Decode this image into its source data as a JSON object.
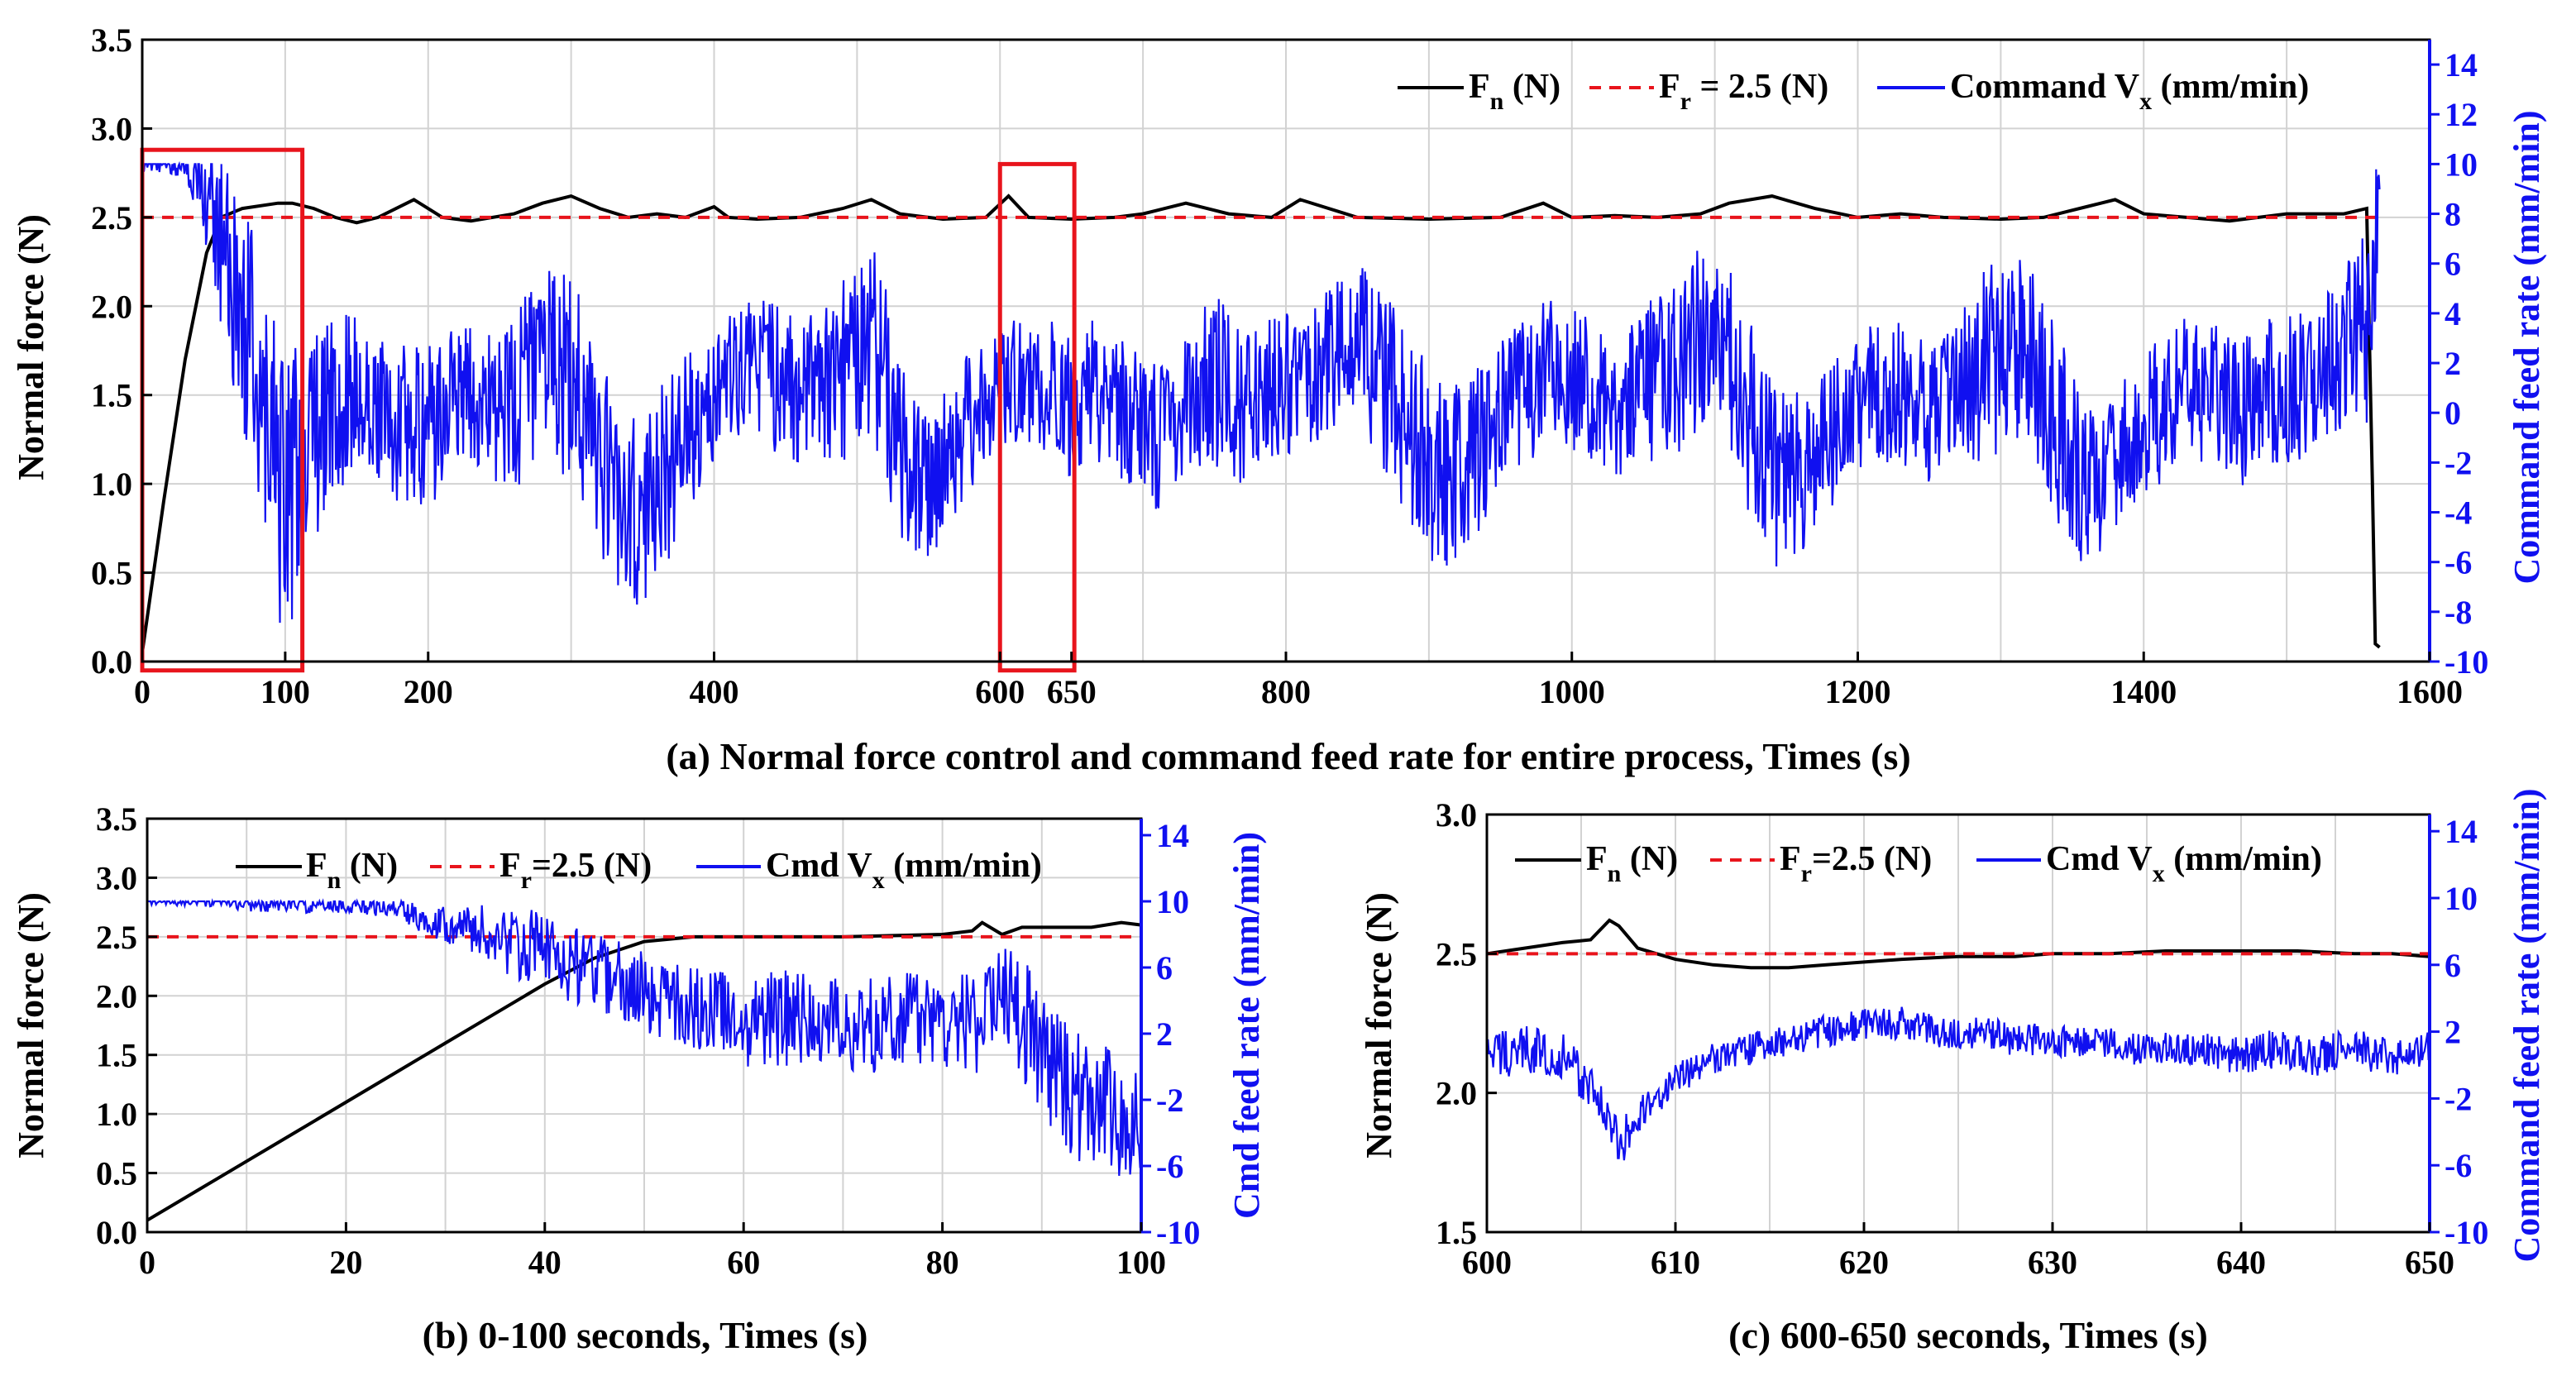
{
  "colors": {
    "force": "#000000",
    "reference": "#e8141c",
    "command": "#1010f0",
    "highlight": "#e8141c",
    "grid": "#d2d2d2"
  },
  "chart_data": [
    {
      "id": "a",
      "type": "line",
      "caption": "(a) Normal force control and command feed rate for entire process, Times (s)",
      "ylabel": "Normal force (N)",
      "y2label": "Command feed rate (mm/min)",
      "xlim": [
        0,
        1600
      ],
      "ylim": [
        0,
        3.5
      ],
      "y2lim": [
        -10,
        15
      ],
      "xticks": [
        "0",
        "100",
        "200",
        "400",
        "600",
        "650",
        "800",
        "1000",
        "1200",
        "1400",
        "1600"
      ],
      "xtick_values": [
        0,
        100,
        200,
        400,
        600,
        650,
        800,
        1000,
        1200,
        1400,
        1600
      ],
      "grid_x": [
        0,
        100,
        200,
        300,
        400,
        500,
        600,
        700,
        800,
        900,
        1000,
        1100,
        1200,
        1300,
        1400,
        1500,
        1600
      ],
      "yticks": [
        "0.0",
        "0.5",
        "1.0",
        "1.5",
        "2.0",
        "2.5",
        "3.0",
        "3.5"
      ],
      "ytick_values": [
        0,
        0.5,
        1.0,
        1.5,
        2.0,
        2.5,
        3.0,
        3.5
      ],
      "y2ticks": [
        "-10",
        "-8",
        "-6",
        "-4",
        "-2",
        "0",
        "2",
        "4",
        "6",
        "8",
        "10",
        "12",
        "14"
      ],
      "y2tick_values": [
        -10,
        -8,
        -6,
        -4,
        -2,
        0,
        2,
        4,
        6,
        8,
        10,
        12,
        14
      ],
      "legend": {
        "force": "F",
        "force_sub": "n",
        "force_unit": " (N)",
        "ref": "F",
        "ref_sub": "r",
        "ref_unit": " = 2.5 (N)",
        "cmd": "Command V",
        "cmd_sub": "x",
        "cmd_unit": " (mm/min)"
      },
      "highlight_boxes": [
        {
          "x": [
            0,
            112
          ],
          "y": [
            -0.05,
            2.88
          ]
        },
        {
          "x": [
            600,
            652
          ],
          "y": [
            -0.05,
            2.8
          ]
        }
      ],
      "series": [
        {
          "name": "Fn (N)",
          "kind": "force",
          "x": [
            0,
            15,
            30,
            45,
            55,
            70,
            95,
            105,
            120,
            135,
            150,
            165,
            190,
            210,
            230,
            260,
            280,
            300,
            320,
            340,
            360,
            380,
            400,
            410,
            430,
            460,
            490,
            510,
            530,
            560,
            590,
            606,
            620,
            650,
            680,
            700,
            730,
            760,
            790,
            810,
            850,
            900,
            950,
            980,
            1000,
            1030,
            1060,
            1090,
            1110,
            1140,
            1170,
            1200,
            1230,
            1260,
            1300,
            1330,
            1360,
            1380,
            1400,
            1430,
            1460,
            1500,
            1540,
            1556,
            1560,
            1562,
            1565
          ],
          "y": [
            0.05,
            0.9,
            1.7,
            2.3,
            2.5,
            2.55,
            2.58,
            2.58,
            2.55,
            2.5,
            2.47,
            2.5,
            2.6,
            2.5,
            2.48,
            2.52,
            2.58,
            2.62,
            2.55,
            2.5,
            2.52,
            2.5,
            2.56,
            2.5,
            2.49,
            2.5,
            2.55,
            2.6,
            2.52,
            2.49,
            2.5,
            2.62,
            2.5,
            2.49,
            2.5,
            2.52,
            2.58,
            2.52,
            2.5,
            2.6,
            2.5,
            2.49,
            2.5,
            2.58,
            2.5,
            2.51,
            2.5,
            2.52,
            2.58,
            2.62,
            2.55,
            2.5,
            2.52,
            2.5,
            2.49,
            2.5,
            2.56,
            2.6,
            2.52,
            2.5,
            2.48,
            2.52,
            2.52,
            2.55,
            1.0,
            0.1,
            0.08
          ]
        },
        {
          "name": "Fr = 2.5 (N)",
          "kind": "reference",
          "x": [
            0,
            1565
          ],
          "y": [
            2.5,
            2.5
          ]
        },
        {
          "name": "Command Vx (mm/min)",
          "kind": "command",
          "axis": "y2",
          "x": [
            0,
            10,
            20,
            30,
            45,
            60,
            80,
            100,
            110,
            130,
            150,
            170,
            190,
            210,
            230,
            250,
            270,
            290,
            300,
            310,
            330,
            350,
            370,
            390,
            410,
            430,
            450,
            470,
            490,
            510,
            530,
            550,
            570,
            590,
            610,
            630,
            650,
            670,
            690,
            710,
            730,
            750,
            770,
            790,
            810,
            830,
            850,
            870,
            890,
            910,
            930,
            950,
            970,
            990,
            1010,
            1030,
            1050,
            1070,
            1090,
            1110,
            1130,
            1150,
            1170,
            1190,
            1210,
            1230,
            1250,
            1270,
            1290,
            1310,
            1330,
            1350,
            1370,
            1390,
            1410,
            1430,
            1450,
            1470,
            1490,
            1510,
            1530,
            1550,
            1560,
            1565
          ],
          "y": [
            10,
            10,
            10,
            10,
            9,
            6,
            2,
            -4,
            -2,
            0,
            1,
            0,
            -1,
            0,
            1,
            0,
            1,
            2,
            1,
            0,
            -3,
            -4,
            -2,
            0,
            1,
            2,
            1,
            1,
            2,
            3,
            -1,
            -3,
            -1,
            0,
            1,
            1,
            0,
            1,
            0,
            -1,
            0,
            1,
            0,
            1,
            1,
            2,
            3,
            1,
            -1,
            -3,
            -2,
            0,
            1,
            2,
            1,
            0,
            1,
            2,
            3,
            2,
            -1,
            -3,
            -2,
            0,
            1,
            1,
            0,
            1,
            2,
            3,
            1,
            -2,
            -3,
            -1,
            0,
            1,
            1,
            0,
            1,
            1,
            2,
            3,
            4,
            10
          ],
          "amplitude": [
            0.4,
            0.4,
            0.4,
            0.6,
            2.5,
            4,
            5,
            6,
            5,
            4,
            3,
            3,
            4,
            3,
            3,
            3,
            4,
            4,
            5,
            4,
            4,
            4,
            4,
            3,
            3,
            3,
            3,
            3,
            4,
            4,
            4,
            3,
            3,
            3,
            3,
            3,
            3,
            3,
            3,
            3,
            3,
            4,
            3,
            3,
            3,
            3,
            3,
            4,
            4,
            4,
            4,
            3,
            3,
            3,
            3,
            3,
            3,
            4,
            4,
            4,
            4,
            4,
            3,
            3,
            3,
            3,
            3,
            3,
            4,
            4,
            4,
            4,
            3,
            3,
            3,
            3,
            3,
            3,
            3,
            3,
            3,
            4,
            4,
            2
          ]
        }
      ]
    },
    {
      "id": "b",
      "type": "line",
      "caption": "(b) 0-100 seconds, Times (s)",
      "ylabel": "Normal force (N)",
      "y2label": "Cmd feed rate (mm/min)",
      "xlim": [
        0,
        100
      ],
      "ylim": [
        0,
        3.5
      ],
      "y2lim": [
        -10,
        15
      ],
      "xticks": [
        "0",
        "20",
        "40",
        "60",
        "80",
        "100"
      ],
      "xtick_values": [
        0,
        20,
        40,
        60,
        80,
        100
      ],
      "grid_x": [
        0,
        10,
        20,
        30,
        40,
        50,
        60,
        70,
        80,
        90,
        100
      ],
      "yticks": [
        "0.0",
        "0.5",
        "1.0",
        "1.5",
        "2.0",
        "2.5",
        "3.0",
        "3.5"
      ],
      "ytick_values": [
        0,
        0.5,
        1.0,
        1.5,
        2.0,
        2.5,
        3.0,
        3.5
      ],
      "y2ticks": [
        "-10",
        "-6",
        "-2",
        "2",
        "6",
        "10",
        "14"
      ],
      "y2tick_values": [
        -10,
        -6,
        -2,
        2,
        6,
        10,
        14
      ],
      "legend": {
        "force": "F",
        "force_sub": "n",
        "force_unit": " (N)",
        "ref": "F",
        "ref_sub": "r",
        "ref_unit": "=2.5 (N)",
        "cmd": "Cmd V",
        "cmd_sub": "x",
        "cmd_unit": " (mm/min)"
      },
      "series": [
        {
          "name": "Fn (N)",
          "kind": "force",
          "x": [
            0,
            5,
            10,
            15,
            20,
            25,
            30,
            35,
            40,
            45,
            50,
            55,
            60,
            65,
            70,
            75,
            80,
            83,
            84,
            86,
            88,
            90,
            95,
            98,
            100
          ],
          "y": [
            0.1,
            0.35,
            0.6,
            0.85,
            1.1,
            1.35,
            1.6,
            1.85,
            2.1,
            2.32,
            2.46,
            2.5,
            2.5,
            2.5,
            2.5,
            2.51,
            2.52,
            2.55,
            2.62,
            2.52,
            2.58,
            2.58,
            2.58,
            2.62,
            2.6
          ]
        },
        {
          "name": "Fr=2.5 (N)",
          "kind": "reference",
          "x": [
            0,
            100
          ],
          "y": [
            2.5,
            2.5
          ]
        },
        {
          "name": "Cmd Vx (mm/min)",
          "kind": "command",
          "axis": "y2",
          "x": [
            0,
            5,
            10,
            15,
            20,
            25,
            28,
            32,
            36,
            40,
            44,
            48,
            52,
            56,
            60,
            64,
            68,
            72,
            76,
            80,
            84,
            86,
            88,
            90,
            92,
            94,
            96,
            98,
            100
          ],
          "y": [
            10,
            10,
            9.8,
            9.8,
            9.8,
            9.6,
            9,
            8.5,
            7.5,
            7,
            6,
            5,
            4,
            3.5,
            3,
            3,
            2.5,
            2.5,
            3,
            3,
            2.5,
            5,
            3,
            0,
            -1,
            -2,
            -2,
            -3,
            -3
          ],
          "amplitude": [
            0.3,
            0.3,
            0.4,
            0.5,
            0.5,
            0.6,
            1,
            1.5,
            2,
            2.5,
            2.5,
            2.5,
            2.5,
            2.5,
            3,
            3,
            3,
            3,
            3,
            3,
            3,
            3,
            4,
            4,
            4,
            4,
            4,
            4,
            4
          ]
        }
      ]
    },
    {
      "id": "c",
      "type": "line",
      "caption": "(c) 600-650 seconds, Times (s)",
      "ylabel": "Normal force (N)",
      "y2label": "Command feed rate (mm/min)",
      "xlim": [
        600,
        650
      ],
      "ylim": [
        1.5,
        3.0
      ],
      "y2lim": [
        -10,
        15
      ],
      "xticks": [
        "600",
        "610",
        "620",
        "630",
        "640",
        "650"
      ],
      "xtick_values": [
        600,
        610,
        620,
        630,
        640,
        650
      ],
      "grid_x": [
        600,
        605,
        610,
        615,
        620,
        625,
        630,
        635,
        640,
        645,
        650
      ],
      "yticks": [
        "1.5",
        "2.0",
        "2.5",
        "3.0"
      ],
      "ytick_values": [
        1.5,
        2.0,
        2.5,
        3.0
      ],
      "y2ticks": [
        "-10",
        "-6",
        "-2",
        "2",
        "6",
        "10",
        "14"
      ],
      "y2tick_values": [
        -10,
        -6,
        -2,
        2,
        6,
        10,
        14
      ],
      "legend": {
        "force": "F",
        "force_sub": "n",
        "force_unit": " (N)",
        "ref": "F",
        "ref_sub": "r",
        "ref_unit": "=2.5 (N)",
        "cmd": "Cmd V",
        "cmd_sub": "x",
        "cmd_unit": " (mm/min)"
      },
      "series": [
        {
          "name": "Fn (N)",
          "kind": "force",
          "x": [
            600,
            602,
            604,
            605.5,
            606.5,
            607,
            608,
            609,
            610,
            612,
            614,
            616,
            618,
            620,
            622,
            625,
            628,
            630,
            633,
            636,
            640,
            643,
            646,
            648,
            650
          ],
          "y": [
            2.5,
            2.52,
            2.54,
            2.55,
            2.62,
            2.6,
            2.52,
            2.5,
            2.48,
            2.46,
            2.45,
            2.45,
            2.46,
            2.47,
            2.48,
            2.49,
            2.49,
            2.5,
            2.5,
            2.51,
            2.51,
            2.51,
            2.5,
            2.5,
            2.49
          ]
        },
        {
          "name": "Fr=2.5 (N)",
          "kind": "reference",
          "x": [
            600,
            650
          ],
          "y": [
            2.5,
            2.5
          ]
        },
        {
          "name": "Cmd Vx (mm/min)",
          "kind": "command",
          "axis": "y2",
          "x": [
            600,
            602,
            604,
            606,
            607,
            608,
            610,
            612,
            614,
            616,
            618,
            620,
            622,
            624,
            626,
            628,
            630,
            632,
            634,
            636,
            638,
            640,
            642,
            644,
            646,
            648,
            650
          ],
          "y": [
            0.5,
            1,
            0.5,
            -2,
            -5,
            -3,
            -1,
            0.5,
            1,
            1.5,
            2,
            2.5,
            2.5,
            2,
            2,
            1.5,
            1.5,
            1.5,
            1,
            1,
            1,
            0.5,
            1,
            0.5,
            1,
            0.5,
            1
          ],
          "amplitude": [
            1.5,
            1.5,
            1.5,
            1.5,
            1.5,
            1.2,
            1,
            1,
            1,
            1,
            1,
            1,
            1,
            1,
            1,
            1,
            1,
            1,
            1,
            1,
            1,
            1.2,
            1.2,
            1.2,
            1.2,
            1.2,
            1.2
          ]
        }
      ]
    }
  ]
}
